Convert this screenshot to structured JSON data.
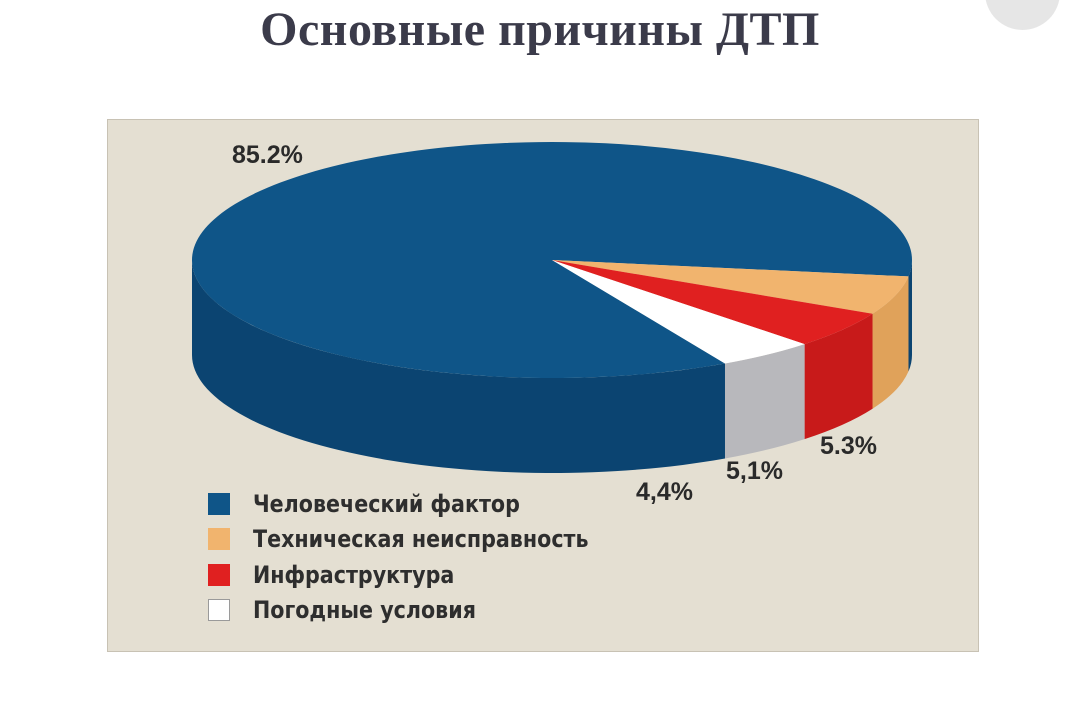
{
  "title": "Основные причины ДТП",
  "chart_data": {
    "type": "pie",
    "style": "3d",
    "slices": [
      {
        "label": "Человеческий фактор",
        "value_label": "85.2%",
        "value": 85.2,
        "color": "#0f5588",
        "side_color": "#0b4471"
      },
      {
        "label": "Техническая неисправность",
        "value_label": "5.3%",
        "value": 5.3,
        "color": "#f1b46e",
        "side_color": "#e0a25a"
      },
      {
        "label": "Инфраструктура",
        "value_label": "5,1%",
        "value": 5.1,
        "color": "#e02020",
        "side_color": "#c81a1a"
      },
      {
        "label": "Погодные условия",
        "value_label": "4,4%",
        "value": 4.4,
        "color": "#ffffff",
        "side_color": "#b8b8bc"
      }
    ],
    "legend_position": "bottom-left"
  }
}
